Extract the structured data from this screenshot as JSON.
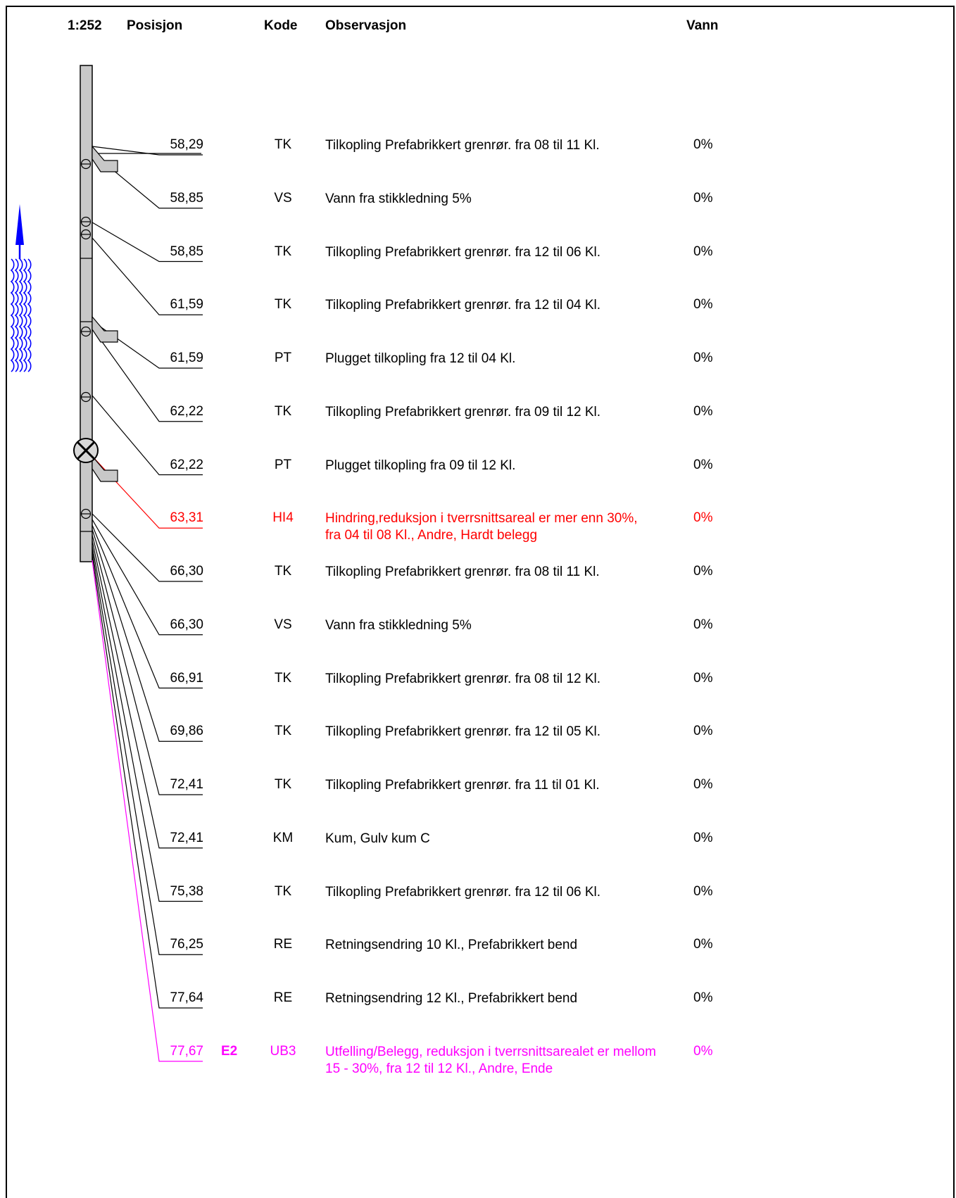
{
  "header": {
    "scale": "1:252",
    "position": "Posisjon",
    "code": "Kode",
    "observation": "Observasjon",
    "water": "Vann"
  },
  "colors": {
    "normal": "#000000",
    "hindrance": "#ff0000",
    "deposit": "#ff00ff",
    "flow_arrow": "#0000ff",
    "pipe_fill": "#c8c8c8"
  },
  "flow_direction": "up",
  "icons": [
    "flow-arrow-icon",
    "water-wave-icon",
    "connection-marker-icon",
    "branch-pipe-icon",
    "manhole-icon"
  ],
  "rows": [
    {
      "position": "58,29",
      "grade": "",
      "code": "TK",
      "observation": "Tilkopling Prefabrikkert grenrør. fra 08 til 11 Kl.",
      "water": "0%",
      "color": "#000000"
    },
    {
      "position": "58,85",
      "grade": "",
      "code": "VS",
      "observation": "Vann fra stikkledning 5%",
      "water": "0%",
      "color": "#000000"
    },
    {
      "position": "58,85",
      "grade": "",
      "code": "TK",
      "observation": "Tilkopling Prefabrikkert grenrør. fra 12 til 06 Kl.",
      "water": "0%",
      "color": "#000000"
    },
    {
      "position": "61,59",
      "grade": "",
      "code": "TK",
      "observation": "Tilkopling Prefabrikkert grenrør. fra 12 til 04 Kl.",
      "water": "0%",
      "color": "#000000"
    },
    {
      "position": "61,59",
      "grade": "",
      "code": "PT",
      "observation": "Plugget tilkopling fra 12 til 04 Kl.",
      "water": "0%",
      "color": "#000000"
    },
    {
      "position": "62,22",
      "grade": "",
      "code": "TK",
      "observation": "Tilkopling Prefabrikkert grenrør. fra 09 til 12 Kl.",
      "water": "0%",
      "color": "#000000"
    },
    {
      "position": "62,22",
      "grade": "",
      "code": "PT",
      "observation": "Plugget tilkopling fra 09 til 12 Kl.",
      "water": "0%",
      "color": "#000000"
    },
    {
      "position": "63,31",
      "grade": "",
      "code": "HI4",
      "observation": "Hindring,reduksjon i tverrsnittsareal er mer enn 30%, fra 04 til 08 Kl., Andre, Hardt belegg",
      "water": "0%",
      "color": "#ff0000"
    },
    {
      "position": "66,30",
      "grade": "",
      "code": "TK",
      "observation": "Tilkopling Prefabrikkert grenrør. fra 08 til 11 Kl.",
      "water": "0%",
      "color": "#000000"
    },
    {
      "position": "66,30",
      "grade": "",
      "code": "VS",
      "observation": "Vann fra stikkledning 5%",
      "water": "0%",
      "color": "#000000"
    },
    {
      "position": "66,91",
      "grade": "",
      "code": "TK",
      "observation": "Tilkopling Prefabrikkert grenrør. fra 08 til 12 Kl.",
      "water": "0%",
      "color": "#000000"
    },
    {
      "position": "69,86",
      "grade": "",
      "code": "TK",
      "observation": "Tilkopling Prefabrikkert grenrør. fra 12 til 05 Kl.",
      "water": "0%",
      "color": "#000000"
    },
    {
      "position": "72,41",
      "grade": "",
      "code": "TK",
      "observation": "Tilkopling Prefabrikkert grenrør. fra 11 til 01 Kl.",
      "water": "0%",
      "color": "#000000"
    },
    {
      "position": "72,41",
      "grade": "",
      "code": "KM",
      "observation": "Kum, Gulv kum C",
      "water": "0%",
      "color": "#000000"
    },
    {
      "position": "75,38",
      "grade": "",
      "code": "TK",
      "observation": "Tilkopling Prefabrikkert grenrør. fra 12 til 06 Kl.",
      "water": "0%",
      "color": "#000000"
    },
    {
      "position": "76,25",
      "grade": "",
      "code": "RE",
      "observation": "Retningsendring  10 Kl., Prefabrikkert bend",
      "water": "0%",
      "color": "#000000"
    },
    {
      "position": "77,64",
      "grade": "",
      "code": "RE",
      "observation": "Retningsendring  12 Kl., Prefabrikkert bend",
      "water": "0%",
      "color": "#000000"
    },
    {
      "position": "77,67",
      "grade": "E2",
      "code": "UB3",
      "observation": "Utfelling/Belegg, reduksjon i tverrsnittsarealet er mellom 15 - 30%, fra 12 til 12 Kl., Andre, Ende",
      "water": "0%",
      "color": "#ff00ff"
    }
  ]
}
